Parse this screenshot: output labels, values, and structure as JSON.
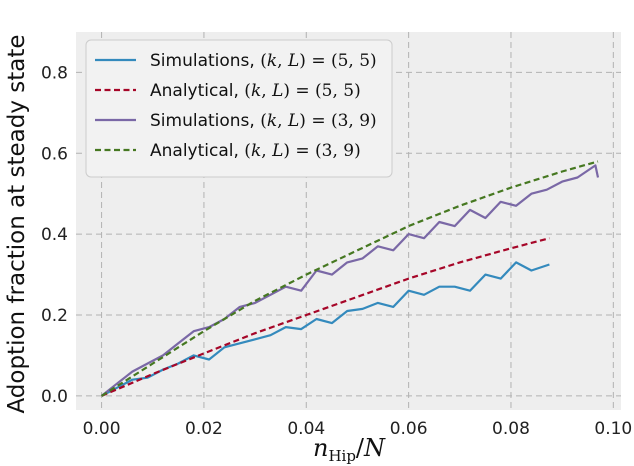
{
  "chart_data": {
    "type": "line",
    "xlabel": "n_Hip/N",
    "ylabel": "Adoption fraction at steady state",
    "xlim": [
      -0.005,
      0.1015
    ],
    "ylim": [
      -0.035,
      0.9
    ],
    "xticks": [
      0.0,
      0.02,
      0.04,
      0.06,
      0.08,
      0.1
    ],
    "xtick_labels": [
      "0.00",
      "0.02",
      "0.04",
      "0.06",
      "0.08",
      "0.10"
    ],
    "yticks": [
      0.0,
      0.2,
      0.4,
      0.6,
      0.8
    ],
    "ytick_labels": [
      "0.0",
      "0.2",
      "0.4",
      "0.6",
      "0.8"
    ],
    "grid": true,
    "legend_position": "top-left",
    "series": [
      {
        "name": "Simulations, (k, L) = (5, 5)",
        "style": "solid",
        "color": "#348ABD",
        "x": [
          0.0,
          0.003,
          0.006,
          0.009,
          0.012,
          0.015,
          0.018,
          0.021,
          0.024,
          0.027,
          0.03,
          0.033,
          0.036,
          0.039,
          0.042,
          0.045,
          0.048,
          0.051,
          0.054,
          0.057,
          0.06,
          0.063,
          0.066,
          0.069,
          0.072,
          0.075,
          0.078,
          0.081,
          0.084,
          0.0875
        ],
        "y": [
          0.0,
          0.02,
          0.04,
          0.045,
          0.065,
          0.08,
          0.1,
          0.09,
          0.12,
          0.13,
          0.14,
          0.15,
          0.17,
          0.165,
          0.19,
          0.18,
          0.21,
          0.215,
          0.23,
          0.22,
          0.26,
          0.25,
          0.27,
          0.27,
          0.26,
          0.3,
          0.29,
          0.33,
          0.31,
          0.325
        ]
      },
      {
        "name": "Analytical,  (k, L) = (5, 5)",
        "style": "dashed",
        "color": "#A60628",
        "x": [
          0.0,
          0.01,
          0.02,
          0.03,
          0.04,
          0.05,
          0.06,
          0.07,
          0.08,
          0.0875
        ],
        "y": [
          0.0,
          0.054,
          0.105,
          0.155,
          0.2,
          0.245,
          0.29,
          0.33,
          0.365,
          0.39
        ]
      },
      {
        "name": "Simulations, (k, L) = (3, 9)",
        "style": "solid",
        "color": "#7A68A6",
        "x": [
          0.0,
          0.003,
          0.006,
          0.009,
          0.012,
          0.015,
          0.018,
          0.021,
          0.024,
          0.027,
          0.03,
          0.033,
          0.036,
          0.039,
          0.042,
          0.045,
          0.048,
          0.051,
          0.054,
          0.057,
          0.06,
          0.063,
          0.066,
          0.069,
          0.072,
          0.075,
          0.078,
          0.081,
          0.084,
          0.087,
          0.09,
          0.093,
          0.0965,
          0.097
        ],
        "y": [
          0.0,
          0.03,
          0.06,
          0.08,
          0.1,
          0.13,
          0.16,
          0.17,
          0.19,
          0.22,
          0.23,
          0.25,
          0.27,
          0.26,
          0.31,
          0.3,
          0.33,
          0.34,
          0.37,
          0.36,
          0.4,
          0.39,
          0.43,
          0.42,
          0.46,
          0.44,
          0.48,
          0.47,
          0.5,
          0.51,
          0.53,
          0.54,
          0.57,
          0.54
        ]
      },
      {
        "name": "Analytical,  (k, L) = (3, 9)",
        "style": "dashed",
        "color": "#467821",
        "x": [
          0.0,
          0.01,
          0.02,
          0.03,
          0.04,
          0.05,
          0.06,
          0.07,
          0.08,
          0.09,
          0.097
        ],
        "y": [
          0.0,
          0.08,
          0.16,
          0.235,
          0.3,
          0.36,
          0.42,
          0.47,
          0.515,
          0.555,
          0.58
        ]
      }
    ]
  }
}
